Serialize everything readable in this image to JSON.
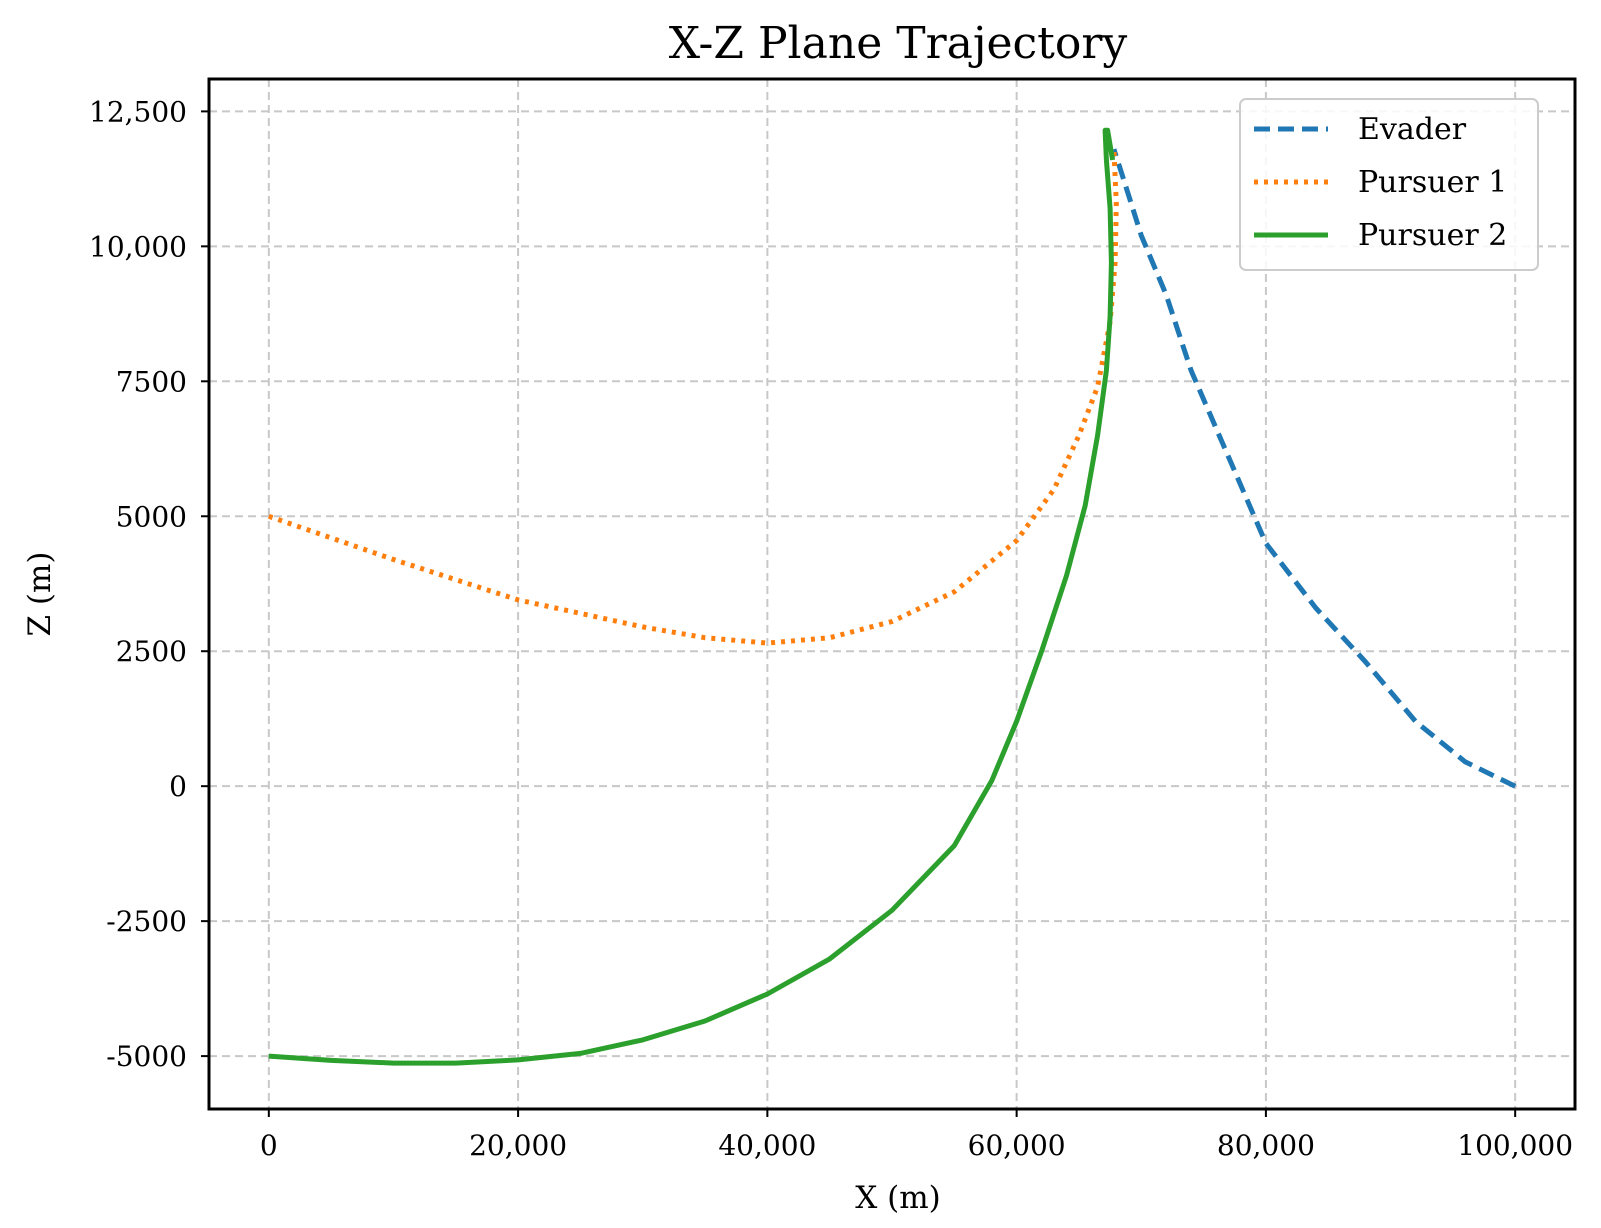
{
  "chart_data": {
    "type": "line",
    "title": "X-Z Plane Trajectory",
    "xlabel": "X (m)",
    "ylabel": "Z (m)",
    "xlim": [
      -4800,
      104800
    ],
    "ylim": [
      -5980,
      13100
    ],
    "x_ticks": [
      {
        "value": 0,
        "label": "0"
      },
      {
        "value": 20000,
        "label": "20,000"
      },
      {
        "value": 40000,
        "label": "40,000"
      },
      {
        "value": 60000,
        "label": "60,000"
      },
      {
        "value": 80000,
        "label": "80,000"
      },
      {
        "value": 100000,
        "label": "100,000"
      }
    ],
    "y_ticks": [
      {
        "value": -5000,
        "label": "-5000"
      },
      {
        "value": -2500,
        "label": "-2500"
      },
      {
        "value": 0,
        "label": "0"
      },
      {
        "value": 2500,
        "label": "2500"
      },
      {
        "value": 5000,
        "label": "5000"
      },
      {
        "value": 7500,
        "label": "7500"
      },
      {
        "value": 10000,
        "label": "10,000"
      },
      {
        "value": 12500,
        "label": "12,500"
      }
    ],
    "grid": true,
    "legend_position": "top-right",
    "series": [
      {
        "name": "Evader",
        "color": "#1f77b4",
        "style": "dashed",
        "x": [
          100000,
          96000,
          92000,
          88000,
          84000,
          80000,
          77000,
          74000,
          72000,
          70000,
          68500,
          67800
        ],
        "y": [
          0,
          450,
          1200,
          2300,
          3300,
          4500,
          6100,
          7700,
          9100,
          10200,
          11300,
          11800
        ]
      },
      {
        "name": "Pursuer 1",
        "color": "#ff7f0e",
        "style": "dotted",
        "x": [
          0,
          10000,
          20000,
          30000,
          35000,
          40000,
          45000,
          50000,
          55000,
          60000,
          63000,
          65000,
          66500,
          67500,
          67900,
          68000,
          67800
        ],
        "y": [
          5000,
          4200,
          3450,
          2950,
          2750,
          2650,
          2750,
          3050,
          3600,
          4550,
          5500,
          6500,
          7400,
          8600,
          9700,
          10800,
          11800
        ]
      },
      {
        "name": "Pursuer 2",
        "color": "#2ca02c",
        "style": "solid",
        "x": [
          0,
          5000,
          10000,
          15000,
          20000,
          25000,
          30000,
          35000,
          40000,
          45000,
          50000,
          55000,
          58000,
          60000,
          62000,
          64000,
          65500,
          66500,
          67200,
          67500,
          67600,
          67500,
          67200,
          67100,
          67300,
          67700
        ],
        "y": [
          -5000,
          -5080,
          -5130,
          -5130,
          -5070,
          -4950,
          -4700,
          -4350,
          -3850,
          -3200,
          -2300,
          -1100,
          100,
          1200,
          2500,
          3900,
          5200,
          6500,
          7700,
          8700,
          9700,
          10700,
          11600,
          12150,
          12150,
          11600
        ]
      }
    ]
  }
}
